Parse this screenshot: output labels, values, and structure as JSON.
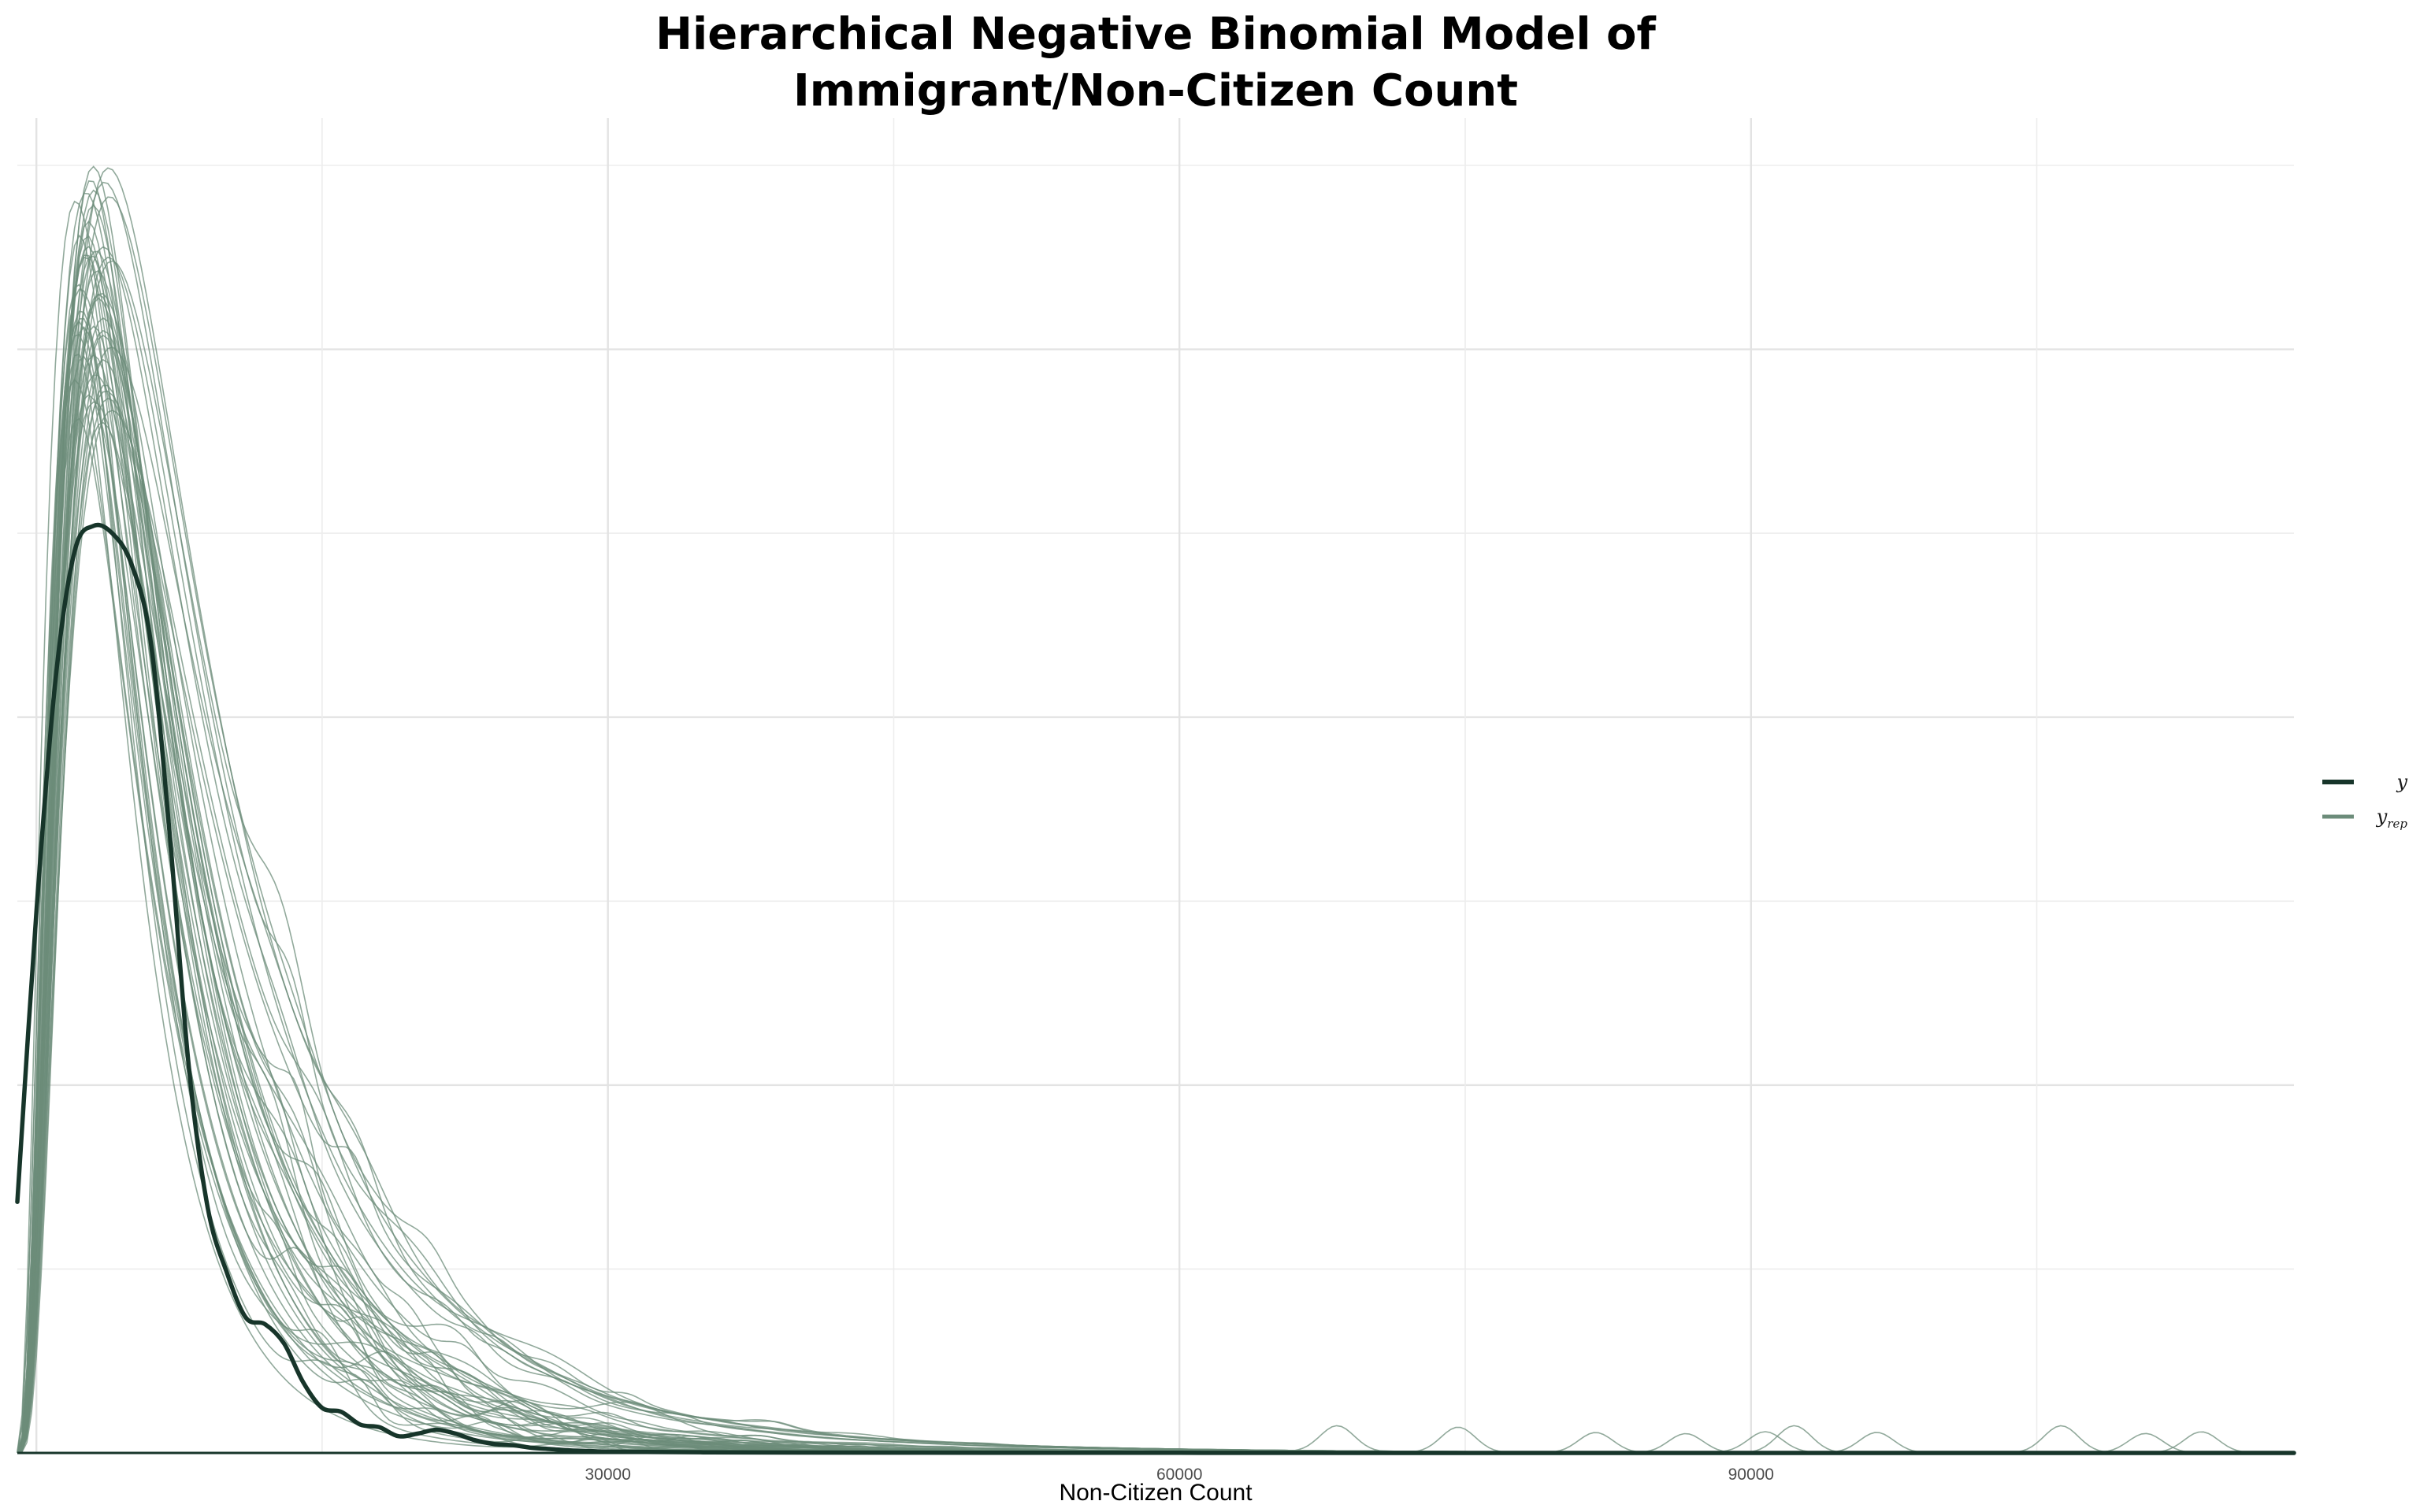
{
  "chart_data": {
    "type": "line",
    "title": [
      "Hierarchical Negative Binomial Model of",
      "Immigrant/Non-Citizen Count"
    ],
    "xlabel": "Non-Citizen Count",
    "ylabel": "",
    "xlim": [
      -1000,
      118500
    ],
    "ylim": [
      0,
      1
    ],
    "x_ticks": [
      30000,
      60000,
      90000
    ],
    "x_tick_labels": [
      "30000",
      "60000",
      "90000"
    ],
    "grid": true,
    "legend": {
      "position": "right",
      "entries": [
        {
          "name": "y",
          "color": "#17352a"
        },
        {
          "name": "y",
          "subscript": "rep",
          "color": "#6c8c7a"
        }
      ]
    },
    "series": [
      {
        "name": "y",
        "color": "#17352a",
        "x": [
          -1000,
          0,
          1000,
          2000,
          3000,
          4000,
          5000,
          6000,
          7000,
          8000,
          9000,
          10000,
          11000,
          12000,
          13000,
          14000,
          15000,
          16000,
          17000,
          18000,
          19000,
          20000,
          21000,
          22000,
          23000,
          24000,
          25000,
          26000,
          27000,
          28000,
          29000,
          30000,
          32000,
          35000,
          40000,
          50000,
          60000,
          80000,
          100000,
          118500
        ],
        "values": [
          0.195,
          0.42,
          0.6,
          0.7,
          0.72,
          0.714,
          0.69,
          0.63,
          0.48,
          0.3,
          0.19,
          0.14,
          0.105,
          0.1,
          0.085,
          0.055,
          0.035,
          0.032,
          0.022,
          0.02,
          0.013,
          0.015,
          0.018,
          0.015,
          0.01,
          0.007,
          0.006,
          0.004,
          0.003,
          0.002,
          0.0015,
          0.001,
          0.0008,
          0.0005,
          0.0003,
          0.0002,
          0.0001,
          0.0,
          0.0,
          0.0
        ]
      }
    ],
    "replicates": {
      "name": "y_rep",
      "color": "#6c8c7a",
      "count": 50,
      "peak_range": [
        0.8,
        1.0
      ],
      "peak_x_range": [
        2000,
        4000
      ]
    }
  }
}
